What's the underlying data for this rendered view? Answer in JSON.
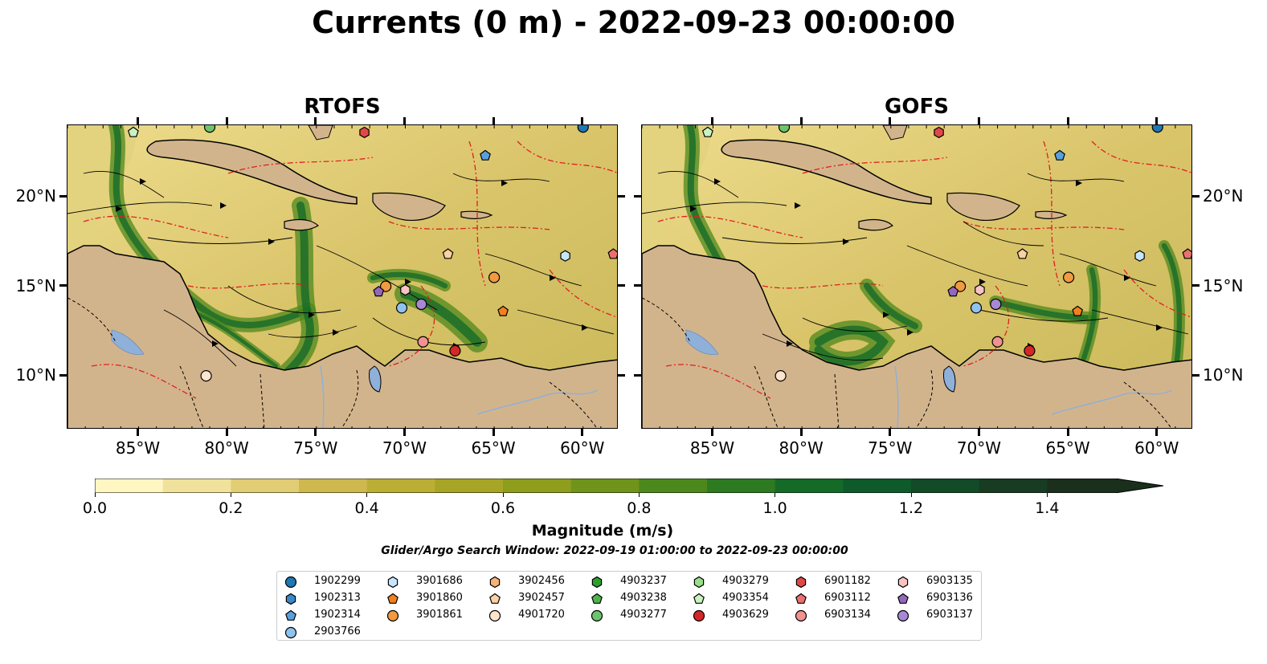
{
  "title": "Currents (0 m) - 2022-09-23 00:00:00",
  "panels": [
    {
      "title": "RTOFS"
    },
    {
      "title": "GOFS"
    }
  ],
  "lon_ticks": [
    "85°W",
    "80°W",
    "75°W",
    "70°W",
    "65°W",
    "60°W"
  ],
  "lat_ticks": [
    "20°N",
    "15°N",
    "10°N"
  ],
  "colorbar": {
    "label": "Magnitude (m/s)",
    "tick_labels": [
      "0.0",
      "0.2",
      "0.4",
      "0.6",
      "0.8",
      "1.0",
      "1.2",
      "1.4"
    ],
    "min": 0.0,
    "max": 1.5,
    "extend": "max",
    "colors": [
      "#fff6c2",
      "#f0e29c",
      "#e1cd74",
      "#cfb84e",
      "#bcae35",
      "#a7a526",
      "#8e9e1c",
      "#6f9419",
      "#4d881c",
      "#2d7a21",
      "#156a28",
      "#0f5a2a",
      "#134a27",
      "#173c22",
      "#1a2f1c"
    ]
  },
  "search_window": "Glider/Argo Search Window: 2022-09-19 01:00:00 to 2022-09-23 00:00:00",
  "legend": {
    "columns": [
      [
        {
          "id": "1902299",
          "marker": "circle",
          "color": "#1f77b4"
        },
        {
          "id": "1902313",
          "marker": "hexagon",
          "color": "#3a88c8"
        },
        {
          "id": "1902314",
          "marker": "pentagon",
          "color": "#5aa0dc"
        },
        {
          "id": "2903766",
          "marker": "circle",
          "color": "#8fc3ee"
        }
      ],
      [
        {
          "id": "3901686",
          "marker": "hexagon",
          "color": "#c6e6fb"
        },
        {
          "id": "3901860",
          "marker": "pentagon",
          "color": "#f08020"
        },
        {
          "id": "3901861",
          "marker": "circle",
          "color": "#f29a3f"
        }
      ],
      [
        {
          "id": "3902456",
          "marker": "hexagon",
          "color": "#f7b276"
        },
        {
          "id": "3902457",
          "marker": "pentagon",
          "color": "#fbd0a2"
        },
        {
          "id": "4901720",
          "marker": "circle",
          "color": "#fde4cc"
        }
      ],
      [
        {
          "id": "4903237",
          "marker": "hexagon",
          "color": "#2ca02c"
        },
        {
          "id": "4903238",
          "marker": "pentagon",
          "color": "#4db44d"
        },
        {
          "id": "4903277",
          "marker": "circle",
          "color": "#6ec46e"
        }
      ],
      [
        {
          "id": "4903279",
          "marker": "hexagon",
          "color": "#98df8a"
        },
        {
          "id": "4903354",
          "marker": "pentagon",
          "color": "#c9f2bf"
        },
        {
          "id": "4903629",
          "marker": "circle",
          "color": "#d62728"
        }
      ],
      [
        {
          "id": "6901182",
          "marker": "hexagon",
          "color": "#e04848"
        },
        {
          "id": "6903112",
          "marker": "pentagon",
          "color": "#ea7070"
        },
        {
          "id": "6903134",
          "marker": "circle",
          "color": "#f09292"
        }
      ],
      [
        {
          "id": "6903135",
          "marker": "hexagon",
          "color": "#f7c3c3"
        },
        {
          "id": "6903136",
          "marker": "pentagon",
          "color": "#9467bd"
        },
        {
          "id": "6903137",
          "marker": "circle",
          "color": "#a888d4"
        }
      ]
    ]
  }
}
